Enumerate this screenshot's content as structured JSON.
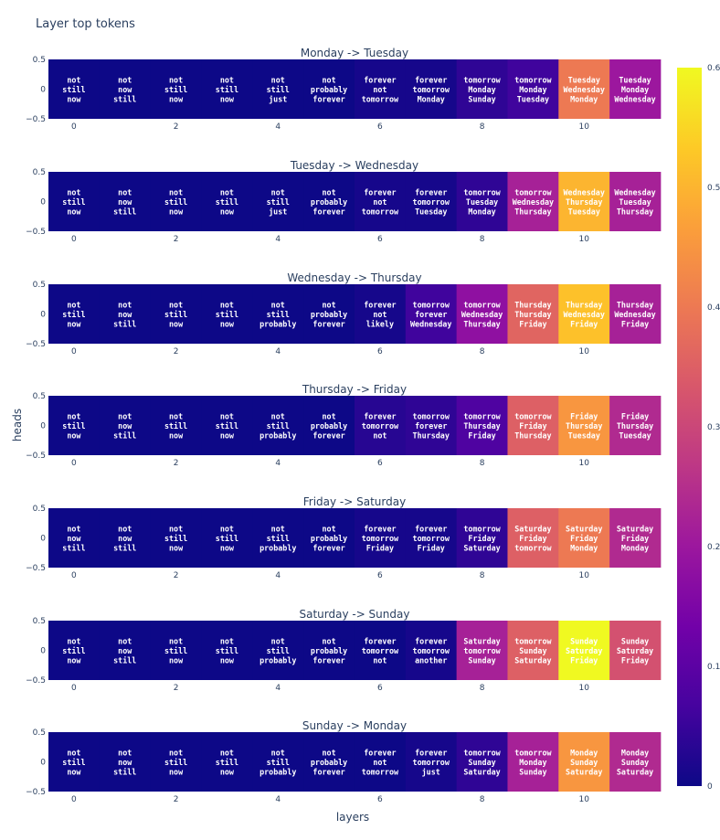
{
  "title": "Layer top tokens",
  "chart_data": {
    "type": "heatmap",
    "xlabel": "layers",
    "ylabel": "heads",
    "x_ticks": [
      "0",
      "2",
      "4",
      "6",
      "8",
      "10"
    ],
    "y_ticks": [
      "0.5",
      "0",
      "−0.5"
    ],
    "colorbar": {
      "range": [
        0,
        0.6
      ],
      "ticks": [
        "0",
        "0.1",
        "0.2",
        "0.3",
        "0.4",
        "0.5",
        "0.6"
      ],
      "colorscale": [
        "#0d0887",
        "#46039f",
        "#7201a8",
        "#9c179e",
        "#bd3786",
        "#d8576b",
        "#ed7953",
        "#fb9f3a",
        "#fdca26",
        "#f0f921"
      ]
    },
    "panels": [
      {
        "title": "Monday -> Tuesday",
        "values": [
          0.0,
          0.0,
          0.0,
          0.0,
          0.0,
          0.0,
          0.01,
          0.01,
          0.04,
          0.06,
          0.4,
          0.2
        ],
        "tokens": [
          [
            "not",
            "still",
            "now"
          ],
          [
            "not",
            "now",
            "still"
          ],
          [
            "not",
            "still",
            "now"
          ],
          [
            "not",
            "still",
            "now"
          ],
          [
            "not",
            "still",
            "just"
          ],
          [
            "not",
            "probably",
            "forever"
          ],
          [
            "forever",
            "not",
            "tomorrow"
          ],
          [
            "forever",
            "tomorrow",
            "Monday"
          ],
          [
            "tomorrow",
            "Monday",
            "Sunday"
          ],
          [
            "tomorrow",
            "Monday",
            "Tuesday"
          ],
          [
            "Tuesday",
            "Wednesday",
            "Monday"
          ],
          [
            "Tuesday",
            "Monday",
            "Wednesday"
          ]
        ]
      },
      {
        "title": "Tuesday -> Wednesday",
        "values": [
          0.0,
          0.0,
          0.0,
          0.0,
          0.0,
          0.0,
          0.01,
          0.01,
          0.04,
          0.22,
          0.5,
          0.22
        ],
        "tokens": [
          [
            "not",
            "still",
            "now"
          ],
          [
            "not",
            "now",
            "still"
          ],
          [
            "not",
            "still",
            "now"
          ],
          [
            "not",
            "still",
            "now"
          ],
          [
            "not",
            "still",
            "just"
          ],
          [
            "not",
            "probably",
            "forever"
          ],
          [
            "forever",
            "not",
            "tomorrow"
          ],
          [
            "forever",
            "tomorrow",
            "Tuesday"
          ],
          [
            "tomorrow",
            "Tuesday",
            "Monday"
          ],
          [
            "tomorrow",
            "Wednesday",
            "Thursday"
          ],
          [
            "Wednesday",
            "Thursday",
            "Tuesday"
          ],
          [
            "Wednesday",
            "Tuesday",
            "Thursday"
          ]
        ]
      },
      {
        "title": "Wednesday -> Thursday",
        "values": [
          0.0,
          0.0,
          0.0,
          0.0,
          0.0,
          0.0,
          0.01,
          0.06,
          0.18,
          0.36,
          0.52,
          0.22
        ],
        "tokens": [
          [
            "not",
            "still",
            "now"
          ],
          [
            "not",
            "now",
            "still"
          ],
          [
            "not",
            "still",
            "now"
          ],
          [
            "not",
            "still",
            "now"
          ],
          [
            "not",
            "still",
            "probably"
          ],
          [
            "not",
            "probably",
            "forever"
          ],
          [
            "forever",
            "not",
            "likely"
          ],
          [
            "tomorrow",
            "forever",
            "Wednesday"
          ],
          [
            "tomorrow",
            "Wednesday",
            "Thursday"
          ],
          [
            "Thursday",
            "Thursday",
            "Friday"
          ],
          [
            "Thursday",
            "Wednesday",
            "Friday"
          ],
          [
            "Thursday",
            "Wednesday",
            "Friday"
          ]
        ]
      },
      {
        "title": "Thursday -> Friday",
        "values": [
          0.0,
          0.0,
          0.0,
          0.0,
          0.0,
          0.0,
          0.03,
          0.04,
          0.08,
          0.35,
          0.45,
          0.24
        ],
        "tokens": [
          [
            "not",
            "still",
            "now"
          ],
          [
            "not",
            "now",
            "still"
          ],
          [
            "not",
            "still",
            "now"
          ],
          [
            "not",
            "still",
            "now"
          ],
          [
            "not",
            "still",
            "probably"
          ],
          [
            "not",
            "probably",
            "forever"
          ],
          [
            "forever",
            "tomorrow",
            "not"
          ],
          [
            "tomorrow",
            "forever",
            "Thursday"
          ],
          [
            "tomorrow",
            "Thursday",
            "Friday"
          ],
          [
            "tomorrow",
            "Friday",
            "Thursday"
          ],
          [
            "Friday",
            "Thursday",
            "Tuesday"
          ],
          [
            "Friday",
            "Thursday",
            "Tuesday"
          ]
        ]
      },
      {
        "title": "Friday -> Saturday",
        "values": [
          0.0,
          0.0,
          0.0,
          0.0,
          0.0,
          0.0,
          0.01,
          0.01,
          0.04,
          0.35,
          0.4,
          0.24
        ],
        "tokens": [
          [
            "not",
            "now",
            "still"
          ],
          [
            "not",
            "now",
            "still"
          ],
          [
            "not",
            "still",
            "now"
          ],
          [
            "not",
            "still",
            "now"
          ],
          [
            "not",
            "still",
            "probably"
          ],
          [
            "not",
            "probably",
            "forever"
          ],
          [
            "forever",
            "tomorrow",
            "Friday"
          ],
          [
            "forever",
            "tomorrow",
            "Friday"
          ],
          [
            "tomorrow",
            "Friday",
            "Saturday"
          ],
          [
            "Saturday",
            "Friday",
            "tomorrow"
          ],
          [
            "Saturday",
            "Friday",
            "Monday"
          ],
          [
            "Saturday",
            "Friday",
            "Monday"
          ]
        ]
      },
      {
        "title": "Saturday -> Sunday",
        "values": [
          0.0,
          0.0,
          0.0,
          0.0,
          0.0,
          0.0,
          0.0,
          0.01,
          0.22,
          0.35,
          0.6,
          0.32
        ],
        "tokens": [
          [
            "not",
            "still",
            "now"
          ],
          [
            "not",
            "now",
            "still"
          ],
          [
            "not",
            "still",
            "now"
          ],
          [
            "not",
            "still",
            "now"
          ],
          [
            "not",
            "still",
            "probably"
          ],
          [
            "not",
            "probably",
            "forever"
          ],
          [
            "forever",
            "tomorrow",
            "not"
          ],
          [
            "forever",
            "tomorrow",
            "another"
          ],
          [
            "Saturday",
            "tomorrow",
            "Sunday"
          ],
          [
            "tomorrow",
            "Sunday",
            "Saturday"
          ],
          [
            "Sunday",
            "Saturday",
            "Friday"
          ],
          [
            "Sunday",
            "Saturday",
            "Friday"
          ]
        ]
      },
      {
        "title": "Sunday -> Monday",
        "values": [
          0.0,
          0.0,
          0.0,
          0.0,
          0.0,
          0.0,
          0.0,
          0.01,
          0.04,
          0.22,
          0.45,
          0.24
        ],
        "tokens": [
          [
            "not",
            "still",
            "now"
          ],
          [
            "not",
            "now",
            "still"
          ],
          [
            "not",
            "still",
            "now"
          ],
          [
            "not",
            "still",
            "now"
          ],
          [
            "not",
            "still",
            "probably"
          ],
          [
            "not",
            "probably",
            "forever"
          ],
          [
            "forever",
            "not",
            "tomorrow"
          ],
          [
            "forever",
            "tomorrow",
            "just"
          ],
          [
            "tomorrow",
            "Sunday",
            "Saturday"
          ],
          [
            "tomorrow",
            "Monday",
            "Sunday"
          ],
          [
            "Monday",
            "Sunday",
            "Saturday"
          ],
          [
            "Monday",
            "Sunday",
            "Saturday"
          ]
        ]
      }
    ]
  }
}
